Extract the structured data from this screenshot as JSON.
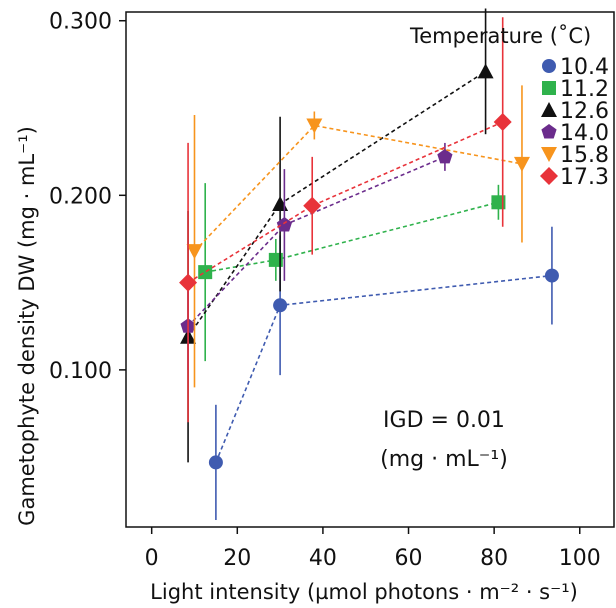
{
  "chart_data": {
    "type": "scatter",
    "xlabel": "Light intensity (µmol photons · m⁻² · s⁻¹)",
    "ylabel": "Gametophyte density DW (mg · mL⁻¹)",
    "xlim": [
      -6,
      108
    ],
    "ylim": [
      0.01,
      0.305
    ],
    "x_ticks": [
      0,
      20,
      40,
      60,
      80,
      100
    ],
    "y_ticks": [
      0.1,
      0.2,
      0.3
    ],
    "y_tick_labels": [
      "0.100",
      "0.200",
      "0.300"
    ],
    "grid": false,
    "legend": {
      "title": "Temperature (˚C)",
      "placement": "top-right"
    },
    "annotation": {
      "line1": "IGD = 0.01",
      "line2": "(mg · mL⁻¹)"
    },
    "series": [
      {
        "name": "10.4",
        "marker": "circle",
        "color": "#3f5bb0",
        "points": [
          {
            "x": 15.0,
            "y": 0.047,
            "err": 0.033
          },
          {
            "x": 30.0,
            "y": 0.137,
            "err": 0.04
          },
          {
            "x": 93.5,
            "y": 0.154,
            "err": 0.028
          }
        ]
      },
      {
        "name": "11.2",
        "marker": "square",
        "color": "#2fb24c",
        "points": [
          {
            "x": 12.5,
            "y": 0.156,
            "err": 0.051
          },
          {
            "x": 29.0,
            "y": 0.163,
            "err": 0.012
          },
          {
            "x": 81.0,
            "y": 0.196,
            "err": 0.01
          }
        ]
      },
      {
        "name": "12.6",
        "marker": "triangle-up",
        "color": "#111111",
        "points": [
          {
            "x": 8.5,
            "y": 0.119,
            "err": 0.072
          },
          {
            "x": 30.0,
            "y": 0.195,
            "err": 0.05
          },
          {
            "x": 78.0,
            "y": 0.271,
            "err": 0.036
          }
        ]
      },
      {
        "name": "14.0",
        "marker": "pentagon",
        "color": "#6b2c8c",
        "points": [
          {
            "x": 8.5,
            "y": 0.125,
            "err": 0.025
          },
          {
            "x": 31.0,
            "y": 0.183,
            "err": 0.032
          },
          {
            "x": 68.5,
            "y": 0.222,
            "err": 0.008
          }
        ]
      },
      {
        "name": "15.8",
        "marker": "triangle-down",
        "color": "#f7941d",
        "points": [
          {
            "x": 10.0,
            "y": 0.168,
            "err": 0.078
          },
          {
            "x": 38.0,
            "y": 0.24,
            "err": 0.008
          },
          {
            "x": 86.5,
            "y": 0.218,
            "err": 0.045
          }
        ]
      },
      {
        "name": "17.3",
        "marker": "diamond",
        "color": "#e8333a",
        "points": [
          {
            "x": 8.5,
            "y": 0.15,
            "err": 0.08
          },
          {
            "x": 37.5,
            "y": 0.194,
            "err": 0.028
          },
          {
            "x": 82.0,
            "y": 0.242,
            "err": 0.06
          }
        ]
      }
    ]
  }
}
